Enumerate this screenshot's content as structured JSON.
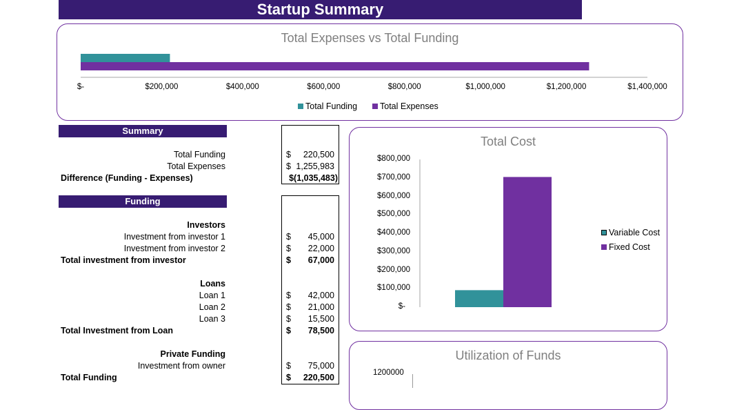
{
  "header": {
    "title": "Startup Summary"
  },
  "colors": {
    "brand": "#371c72",
    "funding": "#31929a",
    "expenses": "#7030a0",
    "border": "#7030a0"
  },
  "summary": {
    "section_title": "Summary",
    "rows": [
      {
        "label": "Total Funding",
        "currency": "$",
        "value": "220,500",
        "bold": false
      },
      {
        "label": "Total Expenses",
        "currency": "$",
        "value": "1,255,983",
        "bold": false
      },
      {
        "label": "Difference (Funding - Expenses)",
        "currency": "",
        "value": "$(1,035,483)",
        "bold": true
      }
    ]
  },
  "funding": {
    "section_title": "Funding",
    "investors_heading": "Investors",
    "investors": [
      {
        "label": "Investment from investor 1",
        "currency": "$",
        "value": "45,000"
      },
      {
        "label": "Investment from investor 2",
        "currency": "$",
        "value": "22,000"
      }
    ],
    "investors_total": {
      "label": "Total investment from investor",
      "currency": "$",
      "value": "67,000"
    },
    "loans_heading": "Loans",
    "loans": [
      {
        "label": "Loan 1",
        "currency": "$",
        "value": "42,000"
      },
      {
        "label": "Loan 2",
        "currency": "$",
        "value": "21,000"
      },
      {
        "label": "Loan 3",
        "currency": "$",
        "value": "15,500"
      }
    ],
    "loans_total": {
      "label": "Total Investment from Loan",
      "currency": "$",
      "value": "78,500"
    },
    "private_heading": "Private Funding",
    "private": [
      {
        "label": "Investment from owner",
        "currency": "$",
        "value": "75,000"
      }
    ],
    "grand_total": {
      "label": "Total Funding",
      "currency": "$",
      "value": "220,500"
    }
  },
  "chart_data": [
    {
      "type": "bar",
      "orientation": "horizontal",
      "title": "Total Expenses vs Total Funding",
      "series": [
        {
          "name": "Total Funding",
          "values": [
            220500
          ],
          "color": "#31929a"
        },
        {
          "name": "Total Expenses",
          "values": [
            1255983
          ],
          "color": "#7030a0"
        }
      ],
      "xlim": [
        0,
        1400000
      ],
      "tick_labels": [
        "$-",
        "$200,000",
        "$400,000",
        "$600,000",
        "$800,000",
        "$1,000,000",
        "$1,200,000",
        "$1,400,000"
      ],
      "legend": "bottom",
      "grid": false
    },
    {
      "type": "bar",
      "title": "Total Cost",
      "series": [
        {
          "name": "Variable Cost",
          "values": [
            92000
          ],
          "color": "#31929a"
        },
        {
          "name": "Fixed Cost",
          "values": [
            705000
          ],
          "color": "#7030a0"
        }
      ],
      "ylim": [
        0,
        800000
      ],
      "tick_labels": [
        "$-",
        "$100,000",
        "$200,000",
        "$300,000",
        "$400,000",
        "$500,000",
        "$600,000",
        "$700,000",
        "$800,000"
      ],
      "legend": "right",
      "grid": false
    },
    {
      "type": "bar",
      "title": "Utilization of Funds",
      "tick_labels": [
        "1200000"
      ]
    }
  ]
}
